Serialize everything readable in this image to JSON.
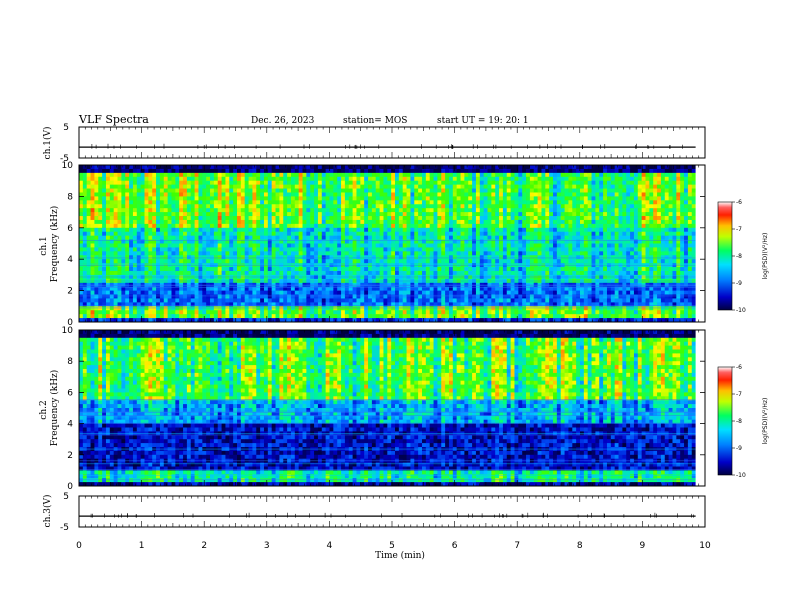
{
  "header": {
    "title": "VLF Spectra",
    "date": "Dec. 26, 2023",
    "station": "station= MOS",
    "start": "start  UT  =    19: 20: 1"
  },
  "chart_data": [
    {
      "type": "line",
      "name": "ch1_waveform",
      "ylabel": "ch.1(V)",
      "ylim": [
        -5,
        5
      ],
      "yticks": [
        "5",
        "-5"
      ],
      "xlim": [
        0,
        10
      ],
      "level": -1.5
    },
    {
      "type": "heatmap",
      "name": "ch1_spectrogram",
      "ylabel": "ch.1\nFrequency (kHz)",
      "ylabel_lines": [
        "ch.1",
        "Frequency (kHz)"
      ],
      "ylim": [
        0,
        10
      ],
      "yticks": [
        "0",
        "2",
        "4",
        "6",
        "8",
        "10"
      ],
      "xlim": [
        0,
        9.85
      ],
      "colorbar": {
        "range": [
          -10,
          -6
        ],
        "ticks": [
          "-6",
          "-7",
          "-8",
          "-9",
          "-10"
        ],
        "label": "log(PSD)(V²/Hz)"
      }
    },
    {
      "type": "heatmap",
      "name": "ch2_spectrogram",
      "ylabel": "ch.2\nFrequency (kHz)",
      "ylabel_lines": [
        "ch.2",
        "Frequency (kHz)"
      ],
      "ylim": [
        0,
        10
      ],
      "yticks": [
        "0",
        "2",
        "4",
        "6",
        "8",
        "10"
      ],
      "xlim": [
        0,
        9.85
      ],
      "colorbar": {
        "range": [
          -10,
          -6
        ],
        "ticks": [
          "-6",
          "-7",
          "-8",
          "-9",
          "-10"
        ],
        "label": "log(PSD)(V²/Hz)"
      }
    },
    {
      "type": "line",
      "name": "ch3_waveform",
      "ylabel": "ch.3(V)",
      "ylim": [
        -5,
        5
      ],
      "yticks": [
        "5",
        "-5"
      ],
      "xlim": [
        0,
        10
      ],
      "level": -1.5
    }
  ],
  "xaxis": {
    "label": "Time  (min)",
    "ticks": [
      "0",
      "1",
      "2",
      "3",
      "4",
      "5",
      "6",
      "7",
      "8",
      "9",
      "10"
    ]
  },
  "colors": {
    "colormap": [
      "#000000",
      "#0000c8",
      "#0060ff",
      "#00c8ff",
      "#00ff80",
      "#40ff00",
      "#ffff00",
      "#ff8000",
      "#ff0000",
      "#ff5050",
      "#ffffff"
    ]
  }
}
